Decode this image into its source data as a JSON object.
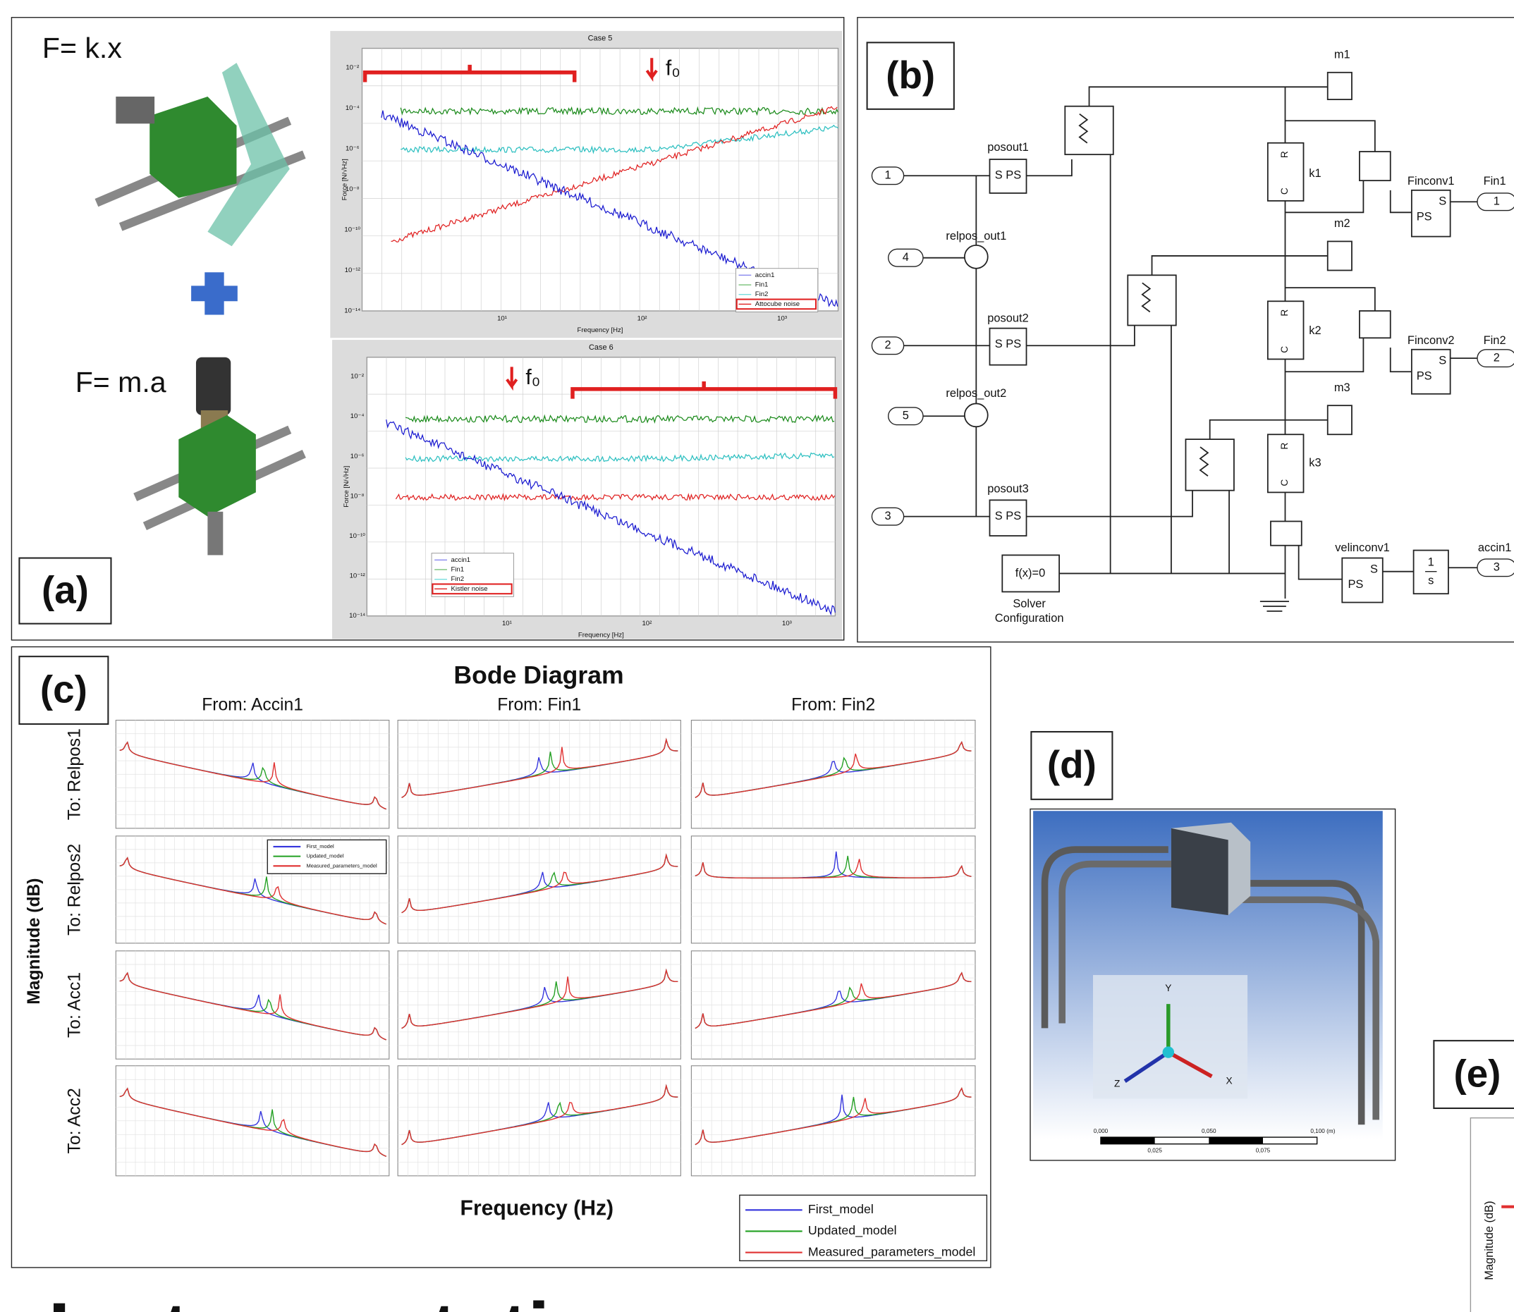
{
  "panel_a": {
    "label": "(a)",
    "formula_spring": "F= k.x",
    "formula_mass": "F= m.a",
    "plot_top": {
      "title": "Case 5",
      "xlabel": "Frequency [Hz]",
      "ylabel": "Force [N/√Hz]",
      "marker": "f₀",
      "legend": [
        "accin1",
        "Fin1",
        "Fin2",
        "Attocube noise"
      ]
    },
    "plot_bottom": {
      "title": "Case 6",
      "xlabel": "Frequency [Hz]",
      "ylabel": "Force [N/√Hz]",
      "marker": "f₀",
      "legend": [
        "accin1",
        "Fin1",
        "Fin2",
        "Kistler noise"
      ]
    },
    "yticks": [
      "10⁻²",
      "10⁻⁴",
      "10⁻⁶",
      "10⁻⁸",
      "10⁻¹⁰",
      "10⁻¹²",
      "10⁻¹⁴"
    ],
    "xticks": [
      "10¹",
      "10²",
      "10³"
    ]
  },
  "panel_b": {
    "label": "(b)",
    "masses": [
      "m1",
      "m2",
      "m3"
    ],
    "springs": [
      "k1",
      "k2",
      "k3"
    ],
    "outputs": [
      {
        "name": "posout1",
        "port": "1"
      },
      {
        "name": "posout2",
        "port": "2"
      },
      {
        "name": "posout3",
        "port": "3"
      }
    ],
    "relpos": [
      {
        "name": "relpos_out1",
        "port": "4"
      },
      {
        "name": "relpos_out2",
        "port": "5"
      }
    ],
    "inputs": [
      {
        "name": "Fin1",
        "conv": "Finconv1",
        "port": "1"
      },
      {
        "name": "Fin2",
        "conv": "Finconv2",
        "port": "2"
      },
      {
        "name": "accin1",
        "conv": "velinconv1",
        "port": "3"
      }
    ],
    "sps": "S PS",
    "ps": "PS",
    "s": "S",
    "integrator_num": "1",
    "integrator_den": "s",
    "solver": "f(x)=0",
    "solver_caption": [
      "Solver",
      "Configuration"
    ],
    "port_r": "R",
    "port_c": "C"
  },
  "panel_c": {
    "label": "(c)",
    "title": "Bode Diagram",
    "columns": [
      "From: Accin1",
      "From: Fin1",
      "From: Fin2"
    ],
    "rows": [
      "To: Relpos1",
      "To: Relpos2",
      "To: Acc1",
      "To: Acc2"
    ],
    "ylabel": "Magnitude (dB)",
    "xlabel": "Frequency (Hz)",
    "legend": [
      {
        "name": "First_model",
        "color": "#3333dd"
      },
      {
        "name": "Updated_model",
        "color": "#22a022"
      },
      {
        "name": "Measured_parameters_model",
        "color": "#e03030"
      }
    ]
  },
  "panel_d": {
    "label": "(d)",
    "axes": [
      "Y",
      "Z",
      "X"
    ],
    "scale_top": [
      "0,000",
      "0,050",
      "0,100 (m)"
    ],
    "scale_bottom": [
      "0,025",
      "0,075"
    ]
  },
  "panel_e": {
    "label": "(e)",
    "ylabel": "Magnitude (dB)"
  },
  "heading": "Instrumentation"
}
